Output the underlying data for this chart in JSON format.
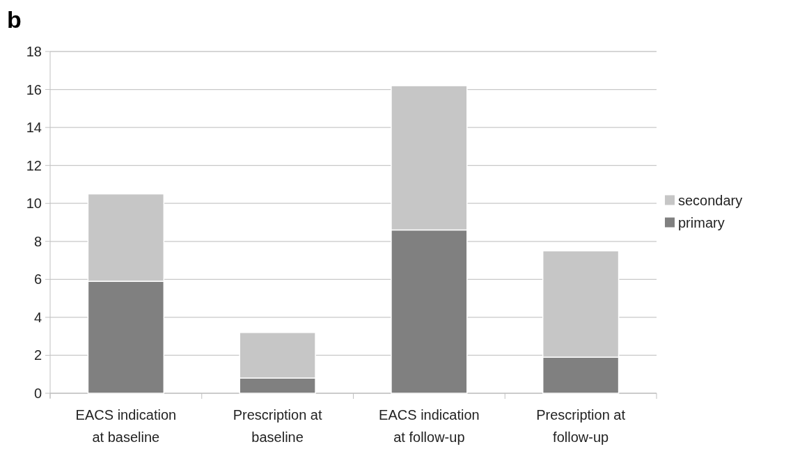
{
  "chart_data": {
    "type": "bar",
    "title": "b",
    "stacked": true,
    "categories": [
      "EACS indication at baseline",
      "Prescription at baseline",
      "EACS indication at follow-up",
      "Prescription at follow-up"
    ],
    "series": [
      {
        "name": "primary",
        "color": "#808080",
        "values": [
          5.9,
          0.8,
          8.6,
          1.9
        ]
      },
      {
        "name": "secondary",
        "color": "#c6c6c6",
        "values": [
          4.6,
          2.4,
          7.6,
          5.6
        ]
      }
    ],
    "ylim": [
      0,
      18
    ],
    "yticks": [
      0,
      2,
      4,
      6,
      8,
      10,
      12,
      14,
      16,
      18
    ],
    "grid": "y",
    "legend": "right"
  }
}
